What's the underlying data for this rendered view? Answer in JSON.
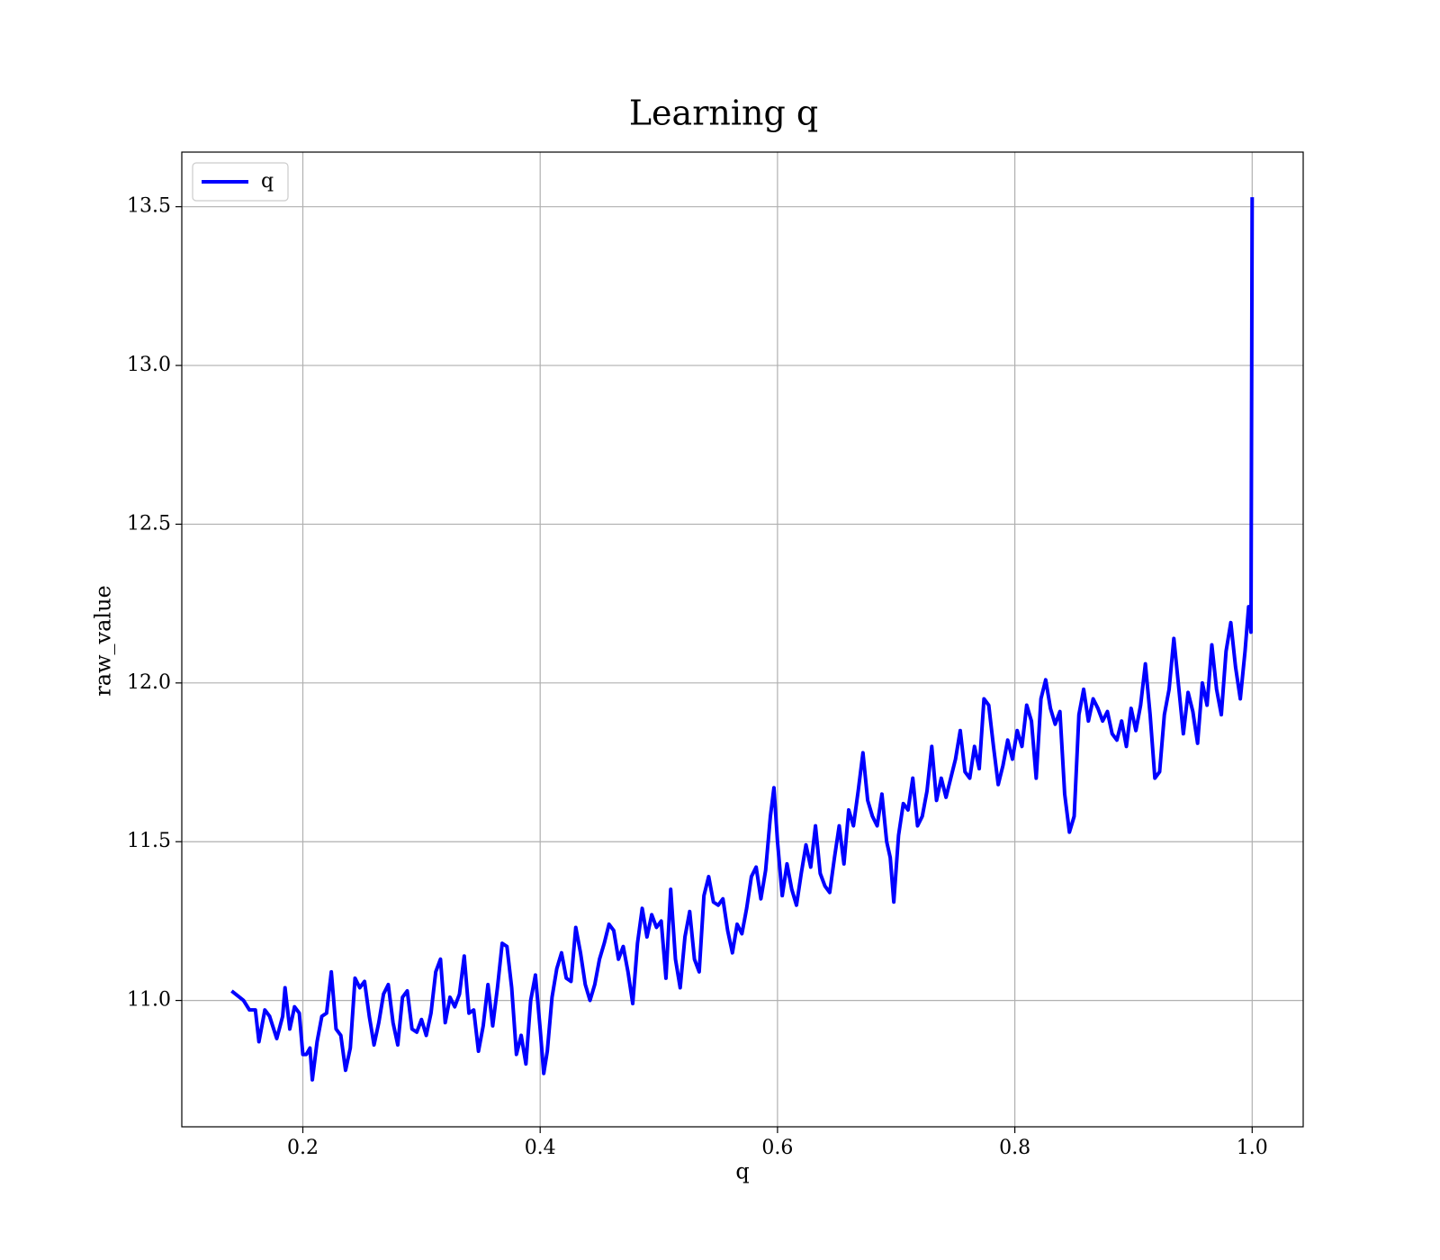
{
  "chart_data": {
    "type": "line",
    "title": "Learning q",
    "xlabel": "q",
    "ylabel": "raw_value",
    "legend": "upper left",
    "grid": true,
    "xlim": [
      0.098,
      1.043
    ],
    "ylim": [
      10.602,
      13.672
    ],
    "xticks": [
      {
        "value": 0.2,
        "label": "0.2"
      },
      {
        "value": 0.4,
        "label": "0.4"
      },
      {
        "value": 0.6,
        "label": "0.6"
      },
      {
        "value": 0.8,
        "label": "0.8"
      },
      {
        "value": 1.0,
        "label": "1.0"
      }
    ],
    "yticks": [
      {
        "value": 11.0,
        "label": "11.0"
      },
      11.5,
      {
        "value": 12.0,
        "label": "12.0"
      },
      12.5,
      {
        "value": 13.0,
        "label": "13.0"
      },
      13.5
    ],
    "x": [
      0.14,
      0.15,
      0.155,
      0.16,
      0.163,
      0.168,
      0.172,
      0.178,
      0.183,
      0.185,
      0.189,
      0.193,
      0.197,
      0.2,
      0.203,
      0.206,
      0.208,
      0.212,
      0.216,
      0.22,
      0.224,
      0.228,
      0.232,
      0.236,
      0.24,
      0.244,
      0.248,
      0.252,
      0.256,
      0.26,
      0.264,
      0.268,
      0.272,
      0.276,
      0.28,
      0.284,
      0.288,
      0.292,
      0.296,
      0.3,
      0.304,
      0.308,
      0.312,
      0.316,
      0.32,
      0.324,
      0.328,
      0.332,
      0.336,
      0.34,
      0.344,
      0.348,
      0.352,
      0.356,
      0.36,
      0.364,
      0.368,
      0.372,
      0.376,
      0.38,
      0.384,
      0.388,
      0.392,
      0.396,
      0.4,
      0.403,
      0.406,
      0.41,
      0.414,
      0.418,
      0.422,
      0.426,
      0.43,
      0.434,
      0.438,
      0.442,
      0.446,
      0.45,
      0.454,
      0.458,
      0.462,
      0.466,
      0.47,
      0.474,
      0.478,
      0.482,
      0.486,
      0.49,
      0.494,
      0.498,
      0.502,
      0.506,
      0.51,
      0.514,
      0.518,
      0.522,
      0.526,
      0.53,
      0.534,
      0.538,
      0.542,
      0.546,
      0.55,
      0.554,
      0.558,
      0.562,
      0.566,
      0.57,
      0.574,
      0.578,
      0.582,
      0.586,
      0.59,
      0.594,
      0.597,
      0.6,
      0.604,
      0.608,
      0.612,
      0.616,
      0.62,
      0.624,
      0.628,
      0.632,
      0.636,
      0.64,
      0.644,
      0.648,
      0.652,
      0.656,
      0.66,
      0.664,
      0.668,
      0.672,
      0.676,
      0.68,
      0.684,
      0.688,
      0.692,
      0.695,
      0.698,
      0.702,
      0.706,
      0.71,
      0.714,
      0.718,
      0.722,
      0.726,
      0.73,
      0.734,
      0.738,
      0.742,
      0.746,
      0.75,
      0.754,
      0.758,
      0.762,
      0.766,
      0.77,
      0.774,
      0.778,
      0.782,
      0.786,
      0.79,
      0.794,
      0.798,
      0.802,
      0.806,
      0.81,
      0.814,
      0.818,
      0.822,
      0.826,
      0.83,
      0.834,
      0.838,
      0.842,
      0.846,
      0.85,
      0.854,
      0.858,
      0.862,
      0.866,
      0.87,
      0.874,
      0.878,
      0.882,
      0.886,
      0.89,
      0.894,
      0.898,
      0.902,
      0.906,
      0.91,
      0.914,
      0.918,
      0.922,
      0.926,
      0.93,
      0.934,
      0.938,
      0.942,
      0.946,
      0.95,
      0.954,
      0.958,
      0.962,
      0.966,
      0.97,
      0.974,
      0.978,
      0.982,
      0.986,
      0.99,
      0.994,
      0.997,
      0.999,
      1.0
    ],
    "series": [
      {
        "name": "q",
        "color": "#0000ff",
        "values": [
          11.03,
          11.0,
          10.97,
          10.97,
          10.87,
          10.97,
          10.95,
          10.88,
          10.95,
          11.04,
          10.91,
          10.98,
          10.96,
          10.83,
          10.83,
          10.85,
          10.75,
          10.87,
          10.95,
          10.96,
          11.09,
          10.91,
          10.89,
          10.78,
          10.85,
          11.07,
          11.04,
          11.06,
          10.95,
          10.86,
          10.93,
          11.02,
          11.05,
          10.93,
          10.86,
          11.01,
          11.03,
          10.91,
          10.9,
          10.94,
          10.89,
          10.96,
          11.09,
          11.13,
          10.93,
          11.01,
          10.98,
          11.02,
          11.14,
          10.96,
          10.97,
          10.84,
          10.92,
          11.05,
          10.92,
          11.04,
          11.18,
          11.17,
          11.04,
          10.83,
          10.89,
          10.8,
          11.0,
          11.08,
          10.91,
          10.77,
          10.84,
          11.01,
          11.1,
          11.15,
          11.07,
          11.06,
          11.23,
          11.15,
          11.05,
          11.0,
          11.05,
          11.13,
          11.18,
          11.24,
          11.22,
          11.13,
          11.17,
          11.09,
          10.99,
          11.18,
          11.29,
          11.2,
          11.27,
          11.23,
          11.25,
          11.07,
          11.35,
          11.13,
          11.04,
          11.2,
          11.28,
          11.13,
          11.09,
          11.33,
          11.39,
          11.31,
          11.3,
          11.32,
          11.22,
          11.15,
          11.24,
          11.21,
          11.29,
          11.39,
          11.42,
          11.32,
          11.41,
          11.58,
          11.67,
          11.5,
          11.33,
          11.43,
          11.35,
          11.3,
          11.4,
          11.49,
          11.42,
          11.55,
          11.4,
          11.36,
          11.34,
          11.45,
          11.55,
          11.43,
          11.6,
          11.55,
          11.66,
          11.78,
          11.63,
          11.58,
          11.55,
          11.65,
          11.5,
          11.45,
          11.31,
          11.52,
          11.62,
          11.6,
          11.7,
          11.55,
          11.58,
          11.66,
          11.8,
          11.63,
          11.7,
          11.64,
          11.7,
          11.76,
          11.85,
          11.72,
          11.7,
          11.8,
          11.73,
          11.95,
          11.93,
          11.8,
          11.68,
          11.74,
          11.82,
          11.76,
          11.85,
          11.8,
          11.93,
          11.88,
          11.7,
          11.95,
          12.01,
          11.92,
          11.87,
          11.91,
          11.65,
          11.53,
          11.58,
          11.9,
          11.98,
          11.88,
          11.95,
          11.92,
          11.88,
          11.91,
          11.84,
          11.82,
          11.88,
          11.8,
          11.92,
          11.85,
          11.93,
          12.06,
          11.9,
          11.7,
          11.72,
          11.9,
          11.98,
          12.14,
          11.99,
          11.84,
          11.97,
          11.91,
          11.81,
          12.0,
          11.93,
          12.12,
          11.98,
          11.9,
          12.1,
          12.19,
          12.05,
          11.95,
          12.1,
          12.24,
          12.16,
          13.53
        ]
      }
    ]
  }
}
